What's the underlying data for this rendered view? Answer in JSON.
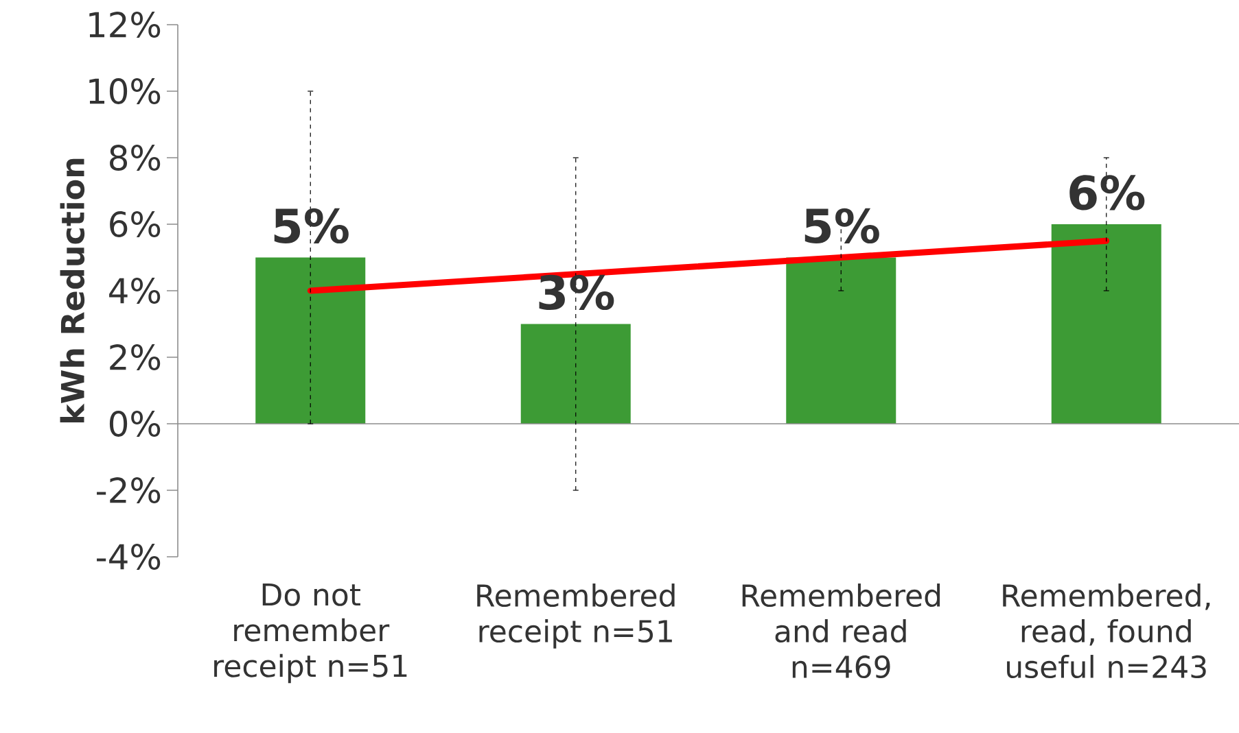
{
  "chart_data": {
    "type": "bar",
    "ylabel": "kWh Reduction",
    "categories": [
      "Do not remember receipt n=51",
      "Remembered receipt n=51",
      "Remembered and read n=469",
      "Remembered, read, found useful n=243"
    ],
    "series": [
      {
        "color": "#3d9b35",
        "values": [
          5,
          3,
          5,
          6
        ],
        "errors": [
          [
            0,
            10
          ],
          [
            -2,
            8
          ],
          [
            4,
            6
          ],
          [
            4,
            8
          ]
        ],
        "value_labels": [
          "5%",
          "3%",
          "5%",
          "6%"
        ]
      },
      {
        "type": "line",
        "color": "#ff0000",
        "values": [
          4,
          4.5,
          5,
          5.5
        ]
      }
    ],
    "ylim": [
      -4,
      12
    ],
    "yticks": [
      {
        "value": -4,
        "label": "-4%"
      },
      {
        "value": -2,
        "label": "-2%"
      },
      {
        "value": 0,
        "label": "0%"
      },
      {
        "value": 2,
        "label": "2%"
      },
      {
        "value": 4,
        "label": "4%"
      },
      {
        "value": 6,
        "label": "6%"
      },
      {
        "value": 8,
        "label": "8%"
      },
      {
        "value": 10,
        "label": "10%"
      },
      {
        "value": 12,
        "label": "12%"
      }
    ]
  }
}
